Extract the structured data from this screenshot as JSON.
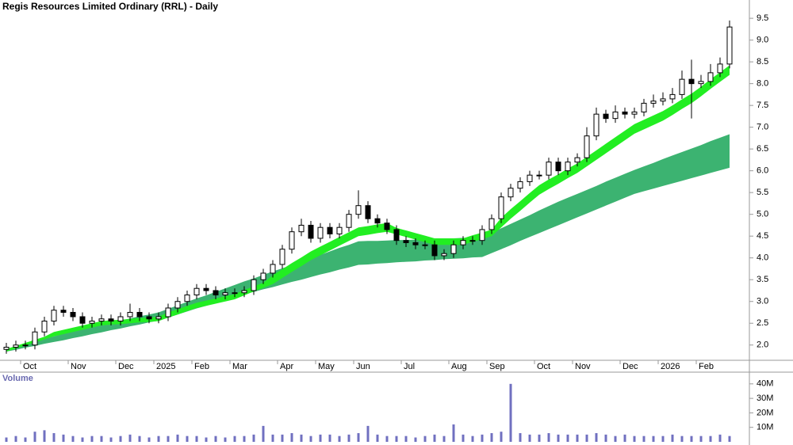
{
  "chart_data": [
    {
      "type": "candlestick",
      "title": "Regis Resources Limited Ordinary (RRL) - Daily",
      "categories": [
        null,
        null,
        "Oct",
        null,
        null,
        null,
        null,
        "Nov",
        null,
        null,
        null,
        null,
        "Dec",
        null,
        null,
        null,
        "2025",
        null,
        null,
        null,
        "Feb",
        null,
        null,
        null,
        "Mar",
        null,
        null,
        null,
        null,
        "Apr",
        null,
        null,
        null,
        "May",
        null,
        null,
        null,
        "Jun",
        null,
        null,
        null,
        null,
        "Jul",
        null,
        null,
        null,
        null,
        "Aug",
        null,
        null,
        null,
        "Sep",
        null,
        null,
        null,
        null,
        "Oct",
        null,
        null,
        null,
        "Nov",
        null,
        null,
        null,
        null,
        "Dec",
        null,
        null,
        null,
        "2026",
        null,
        null,
        null,
        "Feb",
        null,
        null,
        null
      ],
      "open": [
        1.9,
        1.95,
        2.0,
        2.0,
        2.3,
        2.55,
        2.8,
        2.75,
        2.65,
        2.5,
        2.55,
        2.6,
        2.55,
        2.65,
        2.75,
        2.65,
        2.6,
        2.65,
        2.85,
        3.0,
        3.15,
        3.3,
        3.25,
        3.15,
        3.2,
        3.2,
        3.25,
        3.5,
        3.65,
        3.85,
        4.2,
        4.6,
        4.75,
        4.45,
        4.7,
        4.55,
        4.7,
        5.0,
        5.2,
        4.9,
        4.8,
        4.65,
        4.4,
        4.35,
        4.3,
        4.3,
        4.05,
        4.1,
        4.3,
        4.4,
        4.4,
        4.65,
        4.9,
        5.4,
        5.6,
        5.75,
        5.9,
        5.9,
        6.2,
        6.0,
        6.2,
        6.3,
        6.8,
        7.3,
        7.2,
        7.35,
        7.3,
        7.35,
        7.55,
        7.6,
        7.65,
        7.75,
        8.1,
        8.0,
        8.05,
        8.25,
        8.45
      ],
      "high": [
        2.05,
        2.1,
        2.1,
        2.4,
        2.65,
        2.9,
        2.9,
        2.85,
        2.75,
        2.65,
        2.7,
        2.7,
        2.75,
        2.95,
        2.85,
        2.75,
        2.75,
        2.95,
        3.1,
        3.25,
        3.4,
        3.4,
        3.35,
        3.3,
        3.3,
        3.35,
        3.6,
        3.75,
        3.95,
        4.3,
        4.7,
        4.9,
        4.85,
        4.8,
        4.8,
        4.8,
        5.1,
        5.55,
        5.3,
        5.0,
        4.9,
        4.75,
        4.5,
        4.45,
        4.4,
        4.4,
        4.2,
        4.4,
        4.5,
        4.5,
        4.75,
        5.0,
        5.5,
        5.7,
        5.85,
        6.0,
        6.0,
        6.3,
        6.3,
        6.3,
        6.4,
        7.0,
        7.45,
        7.4,
        7.5,
        7.45,
        7.45,
        7.65,
        7.75,
        7.8,
        7.9,
        8.3,
        8.55,
        8.2,
        8.45,
        8.6,
        9.45
      ],
      "low": [
        1.8,
        1.85,
        1.9,
        1.9,
        2.2,
        2.45,
        2.65,
        2.55,
        2.4,
        2.4,
        2.45,
        2.45,
        2.45,
        2.55,
        2.55,
        2.5,
        2.5,
        2.55,
        2.75,
        2.9,
        3.05,
        3.15,
        3.05,
        3.05,
        3.1,
        3.1,
        3.15,
        3.4,
        3.55,
        3.75,
        4.1,
        4.5,
        4.35,
        4.35,
        4.45,
        4.45,
        4.6,
        4.9,
        4.8,
        4.7,
        4.55,
        4.3,
        4.25,
        4.2,
        4.2,
        3.95,
        3.95,
        4.0,
        4.2,
        4.3,
        4.3,
        4.55,
        4.8,
        5.3,
        5.5,
        5.65,
        5.8,
        5.8,
        5.9,
        5.9,
        6.1,
        6.2,
        6.7,
        7.1,
        7.1,
        7.2,
        7.2,
        7.25,
        7.45,
        7.5,
        7.55,
        7.65,
        7.2,
        7.9,
        7.95,
        8.15,
        8.35
      ],
      "close": [
        1.95,
        2.0,
        2.0,
        2.3,
        2.55,
        2.8,
        2.75,
        2.65,
        2.5,
        2.55,
        2.6,
        2.55,
        2.65,
        2.75,
        2.65,
        2.6,
        2.65,
        2.85,
        3.0,
        3.15,
        3.3,
        3.25,
        3.15,
        3.2,
        3.2,
        3.25,
        3.5,
        3.65,
        3.85,
        4.2,
        4.6,
        4.75,
        4.45,
        4.7,
        4.55,
        4.7,
        5.0,
        5.2,
        4.9,
        4.8,
        4.65,
        4.4,
        4.35,
        4.3,
        4.3,
        4.05,
        4.1,
        4.3,
        4.4,
        4.4,
        4.65,
        4.9,
        5.4,
        5.6,
        5.75,
        5.9,
        5.9,
        6.2,
        6.0,
        6.2,
        6.3,
        6.8,
        7.3,
        7.2,
        7.35,
        7.3,
        7.35,
        7.55,
        7.6,
        7.65,
        7.75,
        8.1,
        8.0,
        8.05,
        8.25,
        8.45,
        9.3
      ],
      "up_color": "#ffffff",
      "down_color": "#000000",
      "bands": [
        {
          "color": "#3cb371",
          "upper": [
            1.9,
            1.96,
            2.02,
            2.08,
            2.14,
            2.2,
            2.26,
            2.32,
            2.38,
            2.43,
            2.47,
            2.52,
            2.56,
            2.61,
            2.66,
            2.7,
            2.75,
            2.83,
            2.91,
            2.99,
            3.07,
            3.14,
            3.22,
            3.3,
            3.38,
            3.46,
            3.53,
            3.61,
            3.69,
            3.76,
            3.84,
            3.92,
            4.0,
            4.07,
            4.15,
            4.23,
            4.3,
            4.38,
            4.39,
            4.39,
            4.4,
            4.41,
            4.41,
            4.42,
            4.43,
            4.44,
            4.44,
            4.45,
            4.46,
            4.46,
            4.47,
            4.57,
            4.68,
            4.78,
            4.88,
            4.98,
            5.09,
            5.19,
            5.29,
            5.38,
            5.47,
            5.56,
            5.65,
            5.75,
            5.84,
            5.93,
            6.02,
            6.1,
            6.18,
            6.27,
            6.35,
            6.43,
            6.51,
            6.59,
            6.68,
            6.76,
            6.84
          ],
          "lower": [
            1.85,
            1.89,
            1.94,
            1.98,
            2.03,
            2.07,
            2.11,
            2.16,
            2.2,
            2.25,
            2.29,
            2.34,
            2.38,
            2.43,
            2.47,
            2.52,
            2.56,
            2.63,
            2.7,
            2.77,
            2.84,
            2.9,
            2.97,
            3.04,
            3.11,
            3.17,
            3.22,
            3.28,
            3.33,
            3.39,
            3.45,
            3.5,
            3.56,
            3.62,
            3.67,
            3.73,
            3.78,
            3.84,
            3.85,
            3.87,
            3.88,
            3.9,
            3.91,
            3.92,
            3.94,
            3.95,
            3.97,
            3.98,
            3.99,
            4.01,
            4.02,
            4.11,
            4.2,
            4.29,
            4.39,
            4.48,
            4.57,
            4.66,
            4.75,
            4.84,
            4.93,
            5.02,
            5.11,
            5.2,
            5.29,
            5.38,
            5.47,
            5.53,
            5.59,
            5.65,
            5.71,
            5.77,
            5.83,
            5.89,
            5.95,
            6.01,
            6.07
          ]
        },
        {
          "color": "#22ee22",
          "upper": [
            1.91,
            1.98,
            2.05,
            2.12,
            2.19,
            2.3,
            2.35,
            2.4,
            2.45,
            2.5,
            2.55,
            2.57,
            2.58,
            2.6,
            2.62,
            2.63,
            2.65,
            2.75,
            2.82,
            2.9,
            2.97,
            3.02,
            3.07,
            3.12,
            3.17,
            3.26,
            3.35,
            3.43,
            3.6,
            3.74,
            3.88,
            4.01,
            4.15,
            4.26,
            4.37,
            4.48,
            4.59,
            4.7,
            4.73,
            4.77,
            4.8,
            4.69,
            4.63,
            4.57,
            4.51,
            4.45,
            4.45,
            4.45,
            4.45,
            4.52,
            4.58,
            4.65,
            4.92,
            5.12,
            5.3,
            5.49,
            5.67,
            5.8,
            5.92,
            6.05,
            6.17,
            6.32,
            6.47,
            6.62,
            6.77,
            6.92,
            7.07,
            7.17,
            7.27,
            7.37,
            7.5,
            7.64,
            7.77,
            7.93,
            8.1,
            8.26,
            8.42
          ],
          "lower": [
            1.85,
            1.92,
            1.99,
            2.06,
            2.13,
            2.2,
            2.25,
            2.3,
            2.35,
            2.4,
            2.45,
            2.47,
            2.48,
            2.5,
            2.52,
            2.53,
            2.55,
            2.63,
            2.7,
            2.78,
            2.85,
            2.9,
            2.95,
            3.0,
            3.05,
            3.14,
            3.23,
            3.31,
            3.4,
            3.54,
            3.68,
            3.81,
            3.95,
            4.06,
            4.17,
            4.28,
            4.39,
            4.5,
            4.53,
            4.57,
            4.6,
            4.54,
            4.48,
            4.42,
            4.36,
            4.3,
            4.3,
            4.3,
            4.3,
            4.37,
            4.43,
            4.5,
            4.7,
            4.9,
            5.08,
            5.27,
            5.45,
            5.58,
            5.7,
            5.83,
            5.95,
            6.1,
            6.25,
            6.4,
            6.55,
            6.7,
            6.85,
            6.95,
            7.05,
            7.15,
            7.28,
            7.42,
            7.55,
            7.71,
            7.88,
            8.04,
            8.2
          ]
        }
      ],
      "ylim": [
        1.65,
        9.92
      ],
      "yticks": [
        {
          "value": 2,
          "label": "2.0"
        },
        2.5,
        {
          "value": 3,
          "label": "3.0"
        },
        3.5,
        {
          "value": 4,
          "label": "4.0"
        },
        4.5,
        {
          "value": 5,
          "label": "5.0"
        },
        5.5,
        {
          "value": 6,
          "label": "6.0"
        },
        6.5,
        {
          "value": 7,
          "label": "7.0"
        },
        7.5,
        {
          "value": 8,
          "label": "8.0"
        },
        8.5,
        {
          "value": 9,
          "label": "9.0"
        },
        9.5
      ]
    },
    {
      "type": "bar",
      "title": "Volume",
      "color": "#7070c0",
      "values": [
        3,
        4,
        3,
        7,
        8,
        6,
        5,
        4,
        3,
        4,
        4,
        3,
        4,
        5,
        4,
        3,
        4,
        4,
        5,
        4,
        4,
        3,
        4,
        3,
        4,
        4,
        5,
        11,
        5,
        5,
        6,
        5,
        4,
        5,
        5,
        4,
        5,
        6,
        11,
        5,
        4,
        4,
        4,
        3,
        4,
        5,
        4,
        12,
        5,
        4,
        5,
        6,
        7,
        40,
        6,
        5,
        5,
        6,
        5,
        5,
        5,
        5,
        6,
        5,
        4,
        5,
        4,
        4,
        4,
        4,
        5,
        4,
        4,
        4,
        4,
        5,
        4
      ],
      "ylim": [
        0,
        47
      ],
      "yticks": [
        {
          "value": 10,
          "label": "10M"
        },
        {
          "value": 20,
          "label": "20M"
        },
        {
          "value": 30,
          "label": "30M"
        },
        {
          "value": 40,
          "label": "40M"
        }
      ]
    }
  ]
}
